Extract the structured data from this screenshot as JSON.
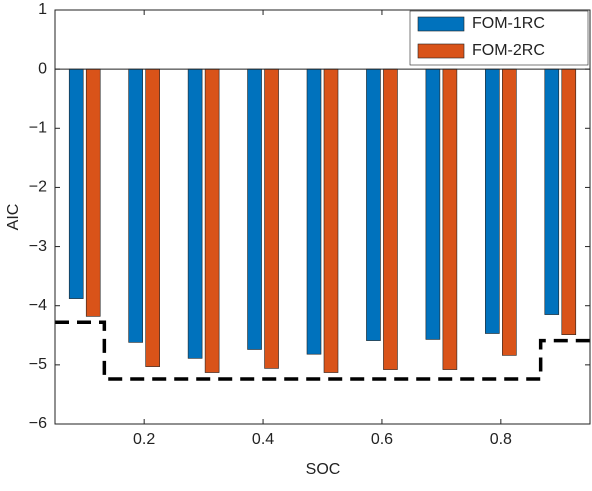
{
  "chart_data": {
    "type": "bar",
    "xlabel": "SOC",
    "ylabel": "AIC",
    "categories": [
      0.1,
      0.2,
      0.3,
      0.4,
      0.5,
      0.6,
      0.7,
      0.8,
      0.9
    ],
    "series": [
      {
        "name": "FOM-1RC",
        "color": "#0072bd",
        "values": [
          -3.88,
          -4.62,
          -4.89,
          -4.74,
          -4.82,
          -4.59,
          -4.57,
          -4.47,
          -4.15
        ]
      },
      {
        "name": "FOM-2RC",
        "color": "#d95319",
        "values": [
          -4.18,
          -5.03,
          -5.13,
          -5.06,
          -5.13,
          -5.08,
          -5.08,
          -4.84,
          -4.49
        ]
      }
    ],
    "reference_line": {
      "x": [
        0.05,
        0.133,
        0.133,
        0.867,
        0.867,
        0.95
      ],
      "y": [
        -4.28,
        -4.28,
        -5.24,
        -5.24,
        -4.59,
        -4.59
      ],
      "color": "#000000",
      "dashed": true
    },
    "xlim": [
      0.05,
      0.95
    ],
    "xticks": [
      0.2,
      0.4,
      0.6,
      0.8
    ],
    "ylim": [
      -6,
      1
    ],
    "yticks": [
      {
        "value": -6,
        "label": "−6"
      },
      {
        "value": -5,
        "label": "−5"
      },
      {
        "value": -4,
        "label": "−4"
      },
      {
        "value": -3,
        "label": "−3"
      },
      {
        "value": -2,
        "label": "−2"
      },
      {
        "value": -1,
        "label": "−1"
      },
      0,
      1
    ],
    "legend": "upper-right",
    "grid": false
  }
}
